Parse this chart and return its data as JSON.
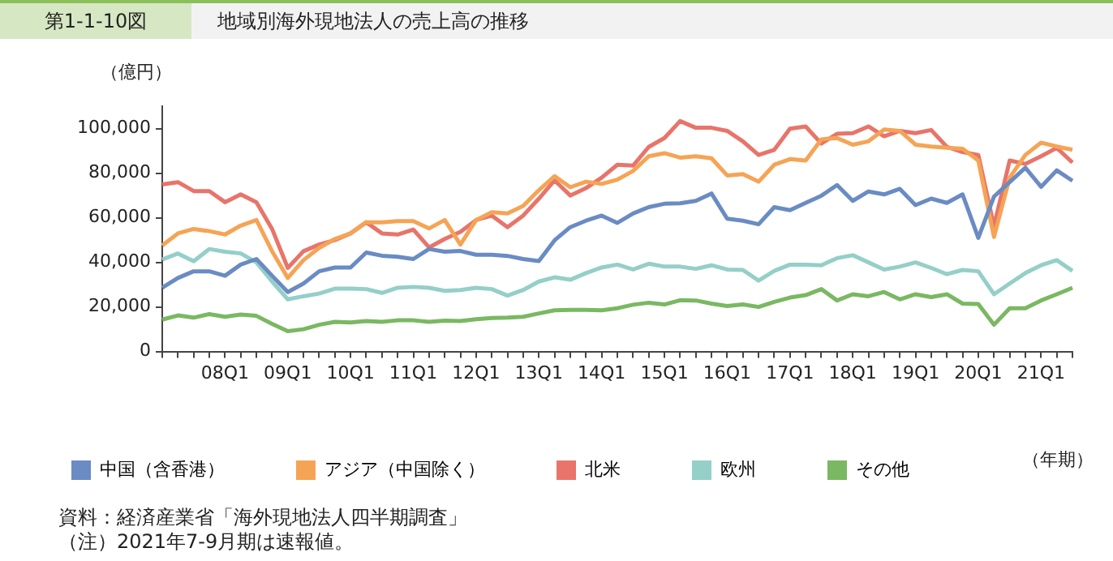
{
  "chart_data": {
    "type": "line",
    "title": "地域別海外現地法人の売上高の推移",
    "subtitle": "第1-1-10図",
    "ylabel": "（億円）",
    "xlabel": "（年期）",
    "annotations": [
      "資料：経済産業省「海外現地法人四半期調査」",
      "（注）2021年7-9月期は速報値。"
    ],
    "categories": [
      null,
      null,
      null,
      null,
      "08Q1",
      null,
      null,
      null,
      "09Q1",
      null,
      null,
      null,
      "10Q1",
      null,
      null,
      null,
      "11Q1",
      null,
      null,
      null,
      "12Q1",
      null,
      null,
      null,
      "13Q1",
      null,
      null,
      null,
      "14Q1",
      null,
      null,
      null,
      "15Q1",
      null,
      null,
      null,
      "16Q1",
      null,
      null,
      null,
      "17Q1",
      null,
      null,
      null,
      "18Q1",
      null,
      null,
      null,
      "19Q1",
      null,
      null,
      null,
      "20Q1",
      null,
      null,
      null,
      "21Q1",
      null,
      null
    ],
    "series": [
      {
        "name": "中国（含香港）",
        "color": "#6a8bc3",
        "values": [
          28600,
          33000,
          36000,
          36000,
          34000,
          39000,
          41500,
          34000,
          26700,
          30500,
          36000,
          37700,
          37700,
          44400,
          43000,
          42500,
          41500,
          46000,
          44800,
          45100,
          43400,
          43400,
          42900,
          41500,
          40600,
          49900,
          55800,
          58700,
          61000,
          57700,
          61900,
          64800,
          66300,
          66500,
          67600,
          70900,
          59600,
          58700,
          57100,
          64800,
          63400,
          66700,
          69900,
          74700,
          67600,
          71800,
          70500,
          73000,
          65700,
          68600,
          66700,
          70500,
          51000,
          69500,
          76000,
          82500,
          73900,
          81300,
          76600
        ]
      },
      {
        "name": "アジア（中国除く）",
        "color": "#f5a455",
        "values": [
          47600,
          53000,
          55000,
          54000,
          52500,
          56500,
          59000,
          45000,
          33000,
          41000,
          46500,
          50500,
          53000,
          58000,
          58000,
          58500,
          58500,
          55200,
          59000,
          48000,
          59000,
          62500,
          62000,
          65300,
          72400,
          78700,
          73700,
          76200,
          75200,
          77100,
          81000,
          87600,
          89000,
          87000,
          87600,
          86700,
          79000,
          79600,
          76200,
          83800,
          86300,
          85700,
          95200,
          95800,
          92800,
          94300,
          99600,
          99000,
          92800,
          92000,
          91400,
          91000,
          85700,
          51400,
          78000,
          88200,
          93700,
          92000,
          90500
        ]
      },
      {
        "name": "北米",
        "color": "#e8746a",
        "values": [
          75000,
          76000,
          72000,
          72000,
          67000,
          70500,
          67000,
          55000,
          37500,
          45000,
          48000,
          50000,
          53000,
          58000,
          53000,
          52500,
          54700,
          46700,
          50500,
          53700,
          59000,
          61000,
          55800,
          61000,
          68600,
          76800,
          70000,
          73300,
          78000,
          83800,
          83400,
          91800,
          95800,
          103400,
          100400,
          100400,
          99000,
          94300,
          88200,
          90500,
          100000,
          101000,
          93300,
          97700,
          98000,
          101000,
          96600,
          99000,
          98000,
          99400,
          91800,
          89500,
          88200,
          56200,
          85700,
          84200,
          87600,
          91400,
          84800
        ]
      },
      {
        "name": "欧州",
        "color": "#94cfc8",
        "values": [
          41300,
          44000,
          40500,
          46000,
          44800,
          44000,
          40000,
          31400,
          23400,
          24800,
          26000,
          28200,
          28200,
          28000,
          26300,
          28600,
          29000,
          28600,
          27200,
          27600,
          28600,
          28000,
          25100,
          27600,
          31400,
          33300,
          32200,
          35200,
          37700,
          39000,
          36800,
          39400,
          38100,
          38100,
          37100,
          38700,
          36800,
          36600,
          31800,
          36200,
          39000,
          39000,
          38700,
          41900,
          43200,
          40000,
          36800,
          38100,
          40000,
          37500,
          34700,
          36600,
          36000,
          25700,
          30500,
          35200,
          38700,
          41000,
          36200
        ]
      },
      {
        "name": "その他",
        "color": "#7ab862",
        "values": [
          14300,
          16200,
          15200,
          16800,
          15600,
          16600,
          16000,
          12400,
          9100,
          10000,
          12000,
          13300,
          13000,
          13700,
          13300,
          14000,
          14000,
          13300,
          13900,
          13700,
          14500,
          15000,
          15200,
          15600,
          17100,
          18500,
          18700,
          18700,
          18500,
          19400,
          21000,
          21900,
          21100,
          23000,
          22900,
          21500,
          20400,
          21100,
          20000,
          22300,
          24200,
          25300,
          28000,
          22900,
          25700,
          24800,
          26700,
          23400,
          25700,
          24400,
          25700,
          21500,
          21300,
          12000,
          19400,
          19400,
          22900,
          25700,
          28600
        ]
      }
    ],
    "ylim": [
      0,
      110000
    ],
    "yticks": [
      0,
      {
        "value": 20000,
        "label": "20,000"
      },
      {
        "value": 40000,
        "label": "40,000"
      },
      {
        "value": 60000,
        "label": "60,000"
      },
      {
        "value": 80000,
        "label": "80,000"
      },
      {
        "value": 100000,
        "label": "100,000"
      }
    ],
    "legend": "bottom",
    "marker": "none",
    "line_style": "solid"
  }
}
